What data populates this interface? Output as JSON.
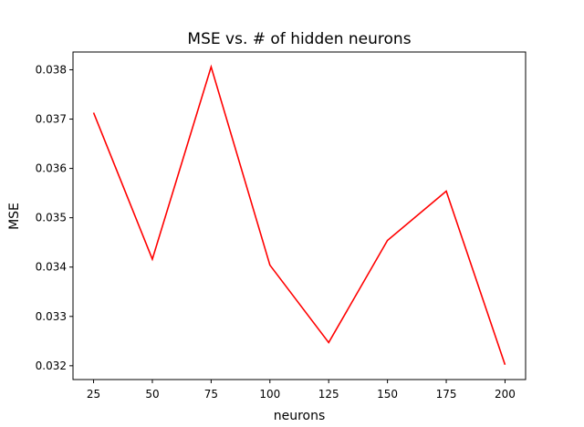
{
  "chart_data": {
    "type": "line",
    "title": "MSE vs. # of hidden neurons",
    "xlabel": "neurons",
    "ylabel": "MSE",
    "x": [
      25,
      50,
      75,
      100,
      125,
      150,
      175,
      200
    ],
    "series": [
      {
        "values": [
          0.03713,
          0.03416,
          0.03806,
          0.03404,
          0.03247,
          0.03454,
          0.03554,
          0.03202
        ],
        "color": "#ff0000"
      }
    ],
    "xticks": [
      25,
      50,
      75,
      100,
      125,
      150,
      175,
      200
    ],
    "xtick_labels": [
      "25",
      "50",
      "75",
      "100",
      "125",
      "150",
      "175",
      "200"
    ],
    "yticks": [
      0.032,
      0.033,
      0.034,
      0.035,
      0.036,
      0.037,
      0.038
    ],
    "ytick_labels": [
      "0.032",
      "0.033",
      "0.034",
      "0.035",
      "0.036",
      "0.037",
      "0.038"
    ],
    "xlim": [
      16.25,
      208.75
    ],
    "ylim": [
      0.03172,
      0.03836
    ],
    "grid": false,
    "legend": "none"
  }
}
